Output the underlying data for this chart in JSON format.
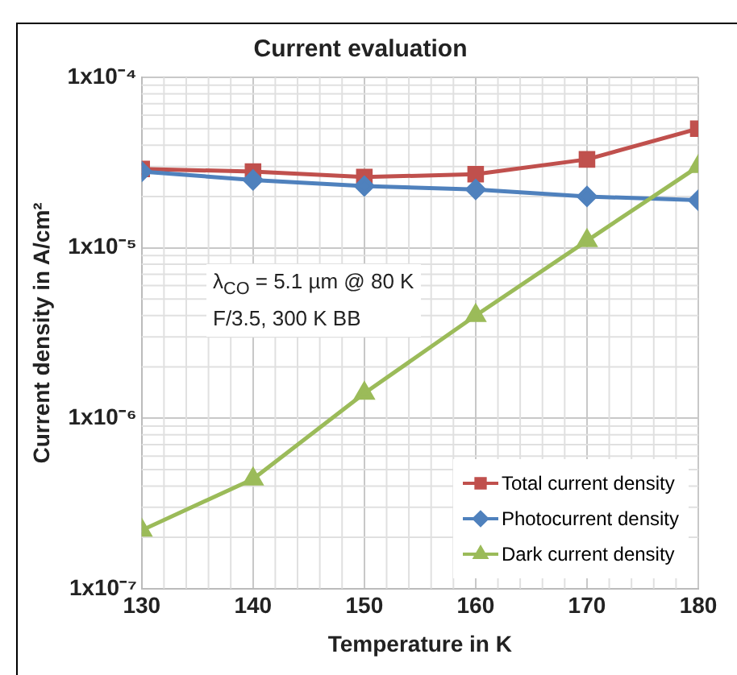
{
  "chart_data": {
    "type": "line",
    "title": "Current evaluation",
    "xlabel": "Temperature in K",
    "ylabel": "Current density in A/cm²",
    "x": [
      130,
      140,
      150,
      160,
      170,
      180
    ],
    "series": [
      {
        "name": "Total current density",
        "color": "#c0504d",
        "marker": "square",
        "values": [
          2.9e-05,
          2.8e-05,
          2.6e-05,
          2.7e-05,
          3.3e-05,
          5e-05
        ]
      },
      {
        "name": "Photocurrent density",
        "color": "#4f81bd",
        "marker": "diamond",
        "values": [
          2.8e-05,
          2.5e-05,
          2.3e-05,
          2.2e-05,
          2e-05,
          1.9e-05
        ]
      },
      {
        "name": "Dark current density",
        "color": "#9bbb59",
        "marker": "triangle",
        "values": [
          2.2e-07,
          4.4e-07,
          1.4e-06,
          4e-06,
          1.1e-05,
          3e-05
        ]
      }
    ],
    "xlim": [
      130,
      180
    ],
    "xticks": [
      130,
      140,
      150,
      160,
      170,
      180
    ],
    "ylim": [
      1e-07,
      0.0001
    ],
    "yticks": [
      {
        "value": 1e-07,
        "label": "1x10⁻⁷"
      },
      {
        "value": 1e-06,
        "label": "1x10⁻⁶"
      },
      {
        "value": 1e-05,
        "label": "1x10⁻⁵"
      },
      {
        "value": 0.0001,
        "label": "1x10⁻⁴"
      }
    ],
    "log": "y",
    "grid": true,
    "legend": "bottom right",
    "annotations": [
      "λ$_{CO}$ = 5.1 µm @ 80 K",
      "F/3.5, 300 K BB"
    ]
  }
}
